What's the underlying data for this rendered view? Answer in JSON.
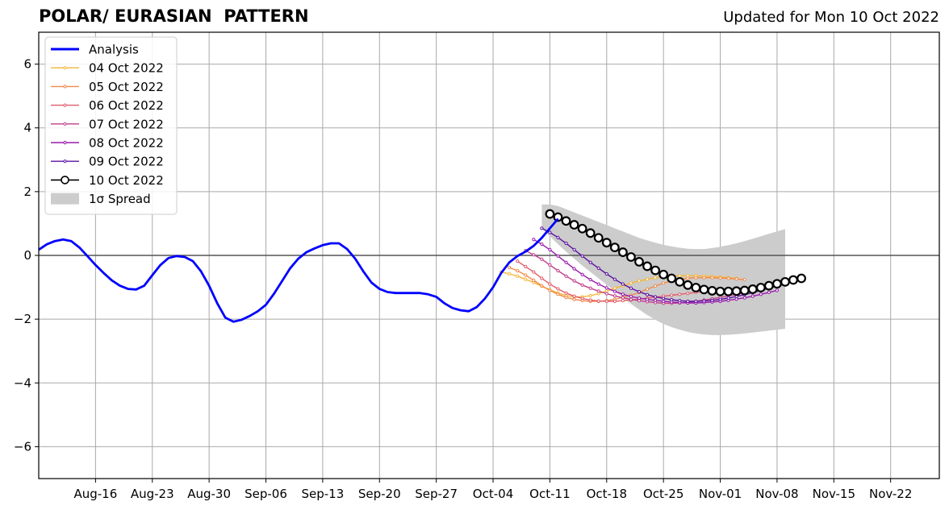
{
  "chart_data": {
    "type": "line",
    "title": "POLAR/ EURASIAN  PATTERN",
    "subtitle": "Updated for Mon 10 Oct 2022",
    "xlabel": "",
    "ylabel": "",
    "x_date_range": [
      "2022-08-09",
      "2022-11-28"
    ],
    "ylim": [
      -7,
      7
    ],
    "yticks": [
      -6,
      -4,
      -2,
      0,
      2,
      4,
      6
    ],
    "ytick_labels": [
      "−6",
      "−4",
      "−2",
      "0",
      "2",
      "4",
      "6"
    ],
    "xtick_dates": [
      "2022-08-16",
      "2022-08-23",
      "2022-08-30",
      "2022-09-06",
      "2022-09-13",
      "2022-09-20",
      "2022-09-27",
      "2022-10-04",
      "2022-10-11",
      "2022-10-18",
      "2022-10-25",
      "2022-11-01",
      "2022-11-08",
      "2022-11-15",
      "2022-11-22"
    ],
    "xtick_labels": [
      "Aug-16",
      "Aug-23",
      "Aug-30",
      "Sep-06",
      "Sep-13",
      "Sep-20",
      "Sep-27",
      "Oct-04",
      "Oct-11",
      "Oct-18",
      "Oct-25",
      "Nov-01",
      "Nov-08",
      "Nov-15",
      "Nov-22"
    ],
    "grid": true,
    "zero_line": true,
    "legend_position": "top-left",
    "analysis": {
      "name": "Analysis",
      "color": "#0000ff",
      "start": "2022-08-09",
      "values": [
        0.18,
        0.35,
        0.45,
        0.5,
        0.45,
        0.25,
        -0.02,
        -0.3,
        -0.55,
        -0.78,
        -0.95,
        -1.05,
        -1.07,
        -0.95,
        -0.62,
        -0.3,
        -0.08,
        -0.02,
        -0.05,
        -0.18,
        -0.5,
        -0.95,
        -1.5,
        -1.95,
        -2.08,
        -2.02,
        -1.9,
        -1.75,
        -1.55,
        -1.2,
        -0.8,
        -0.4,
        -0.1,
        0.1,
        0.22,
        0.32,
        0.38,
        0.38,
        0.2,
        -0.1,
        -0.5,
        -0.85,
        -1.05,
        -1.15,
        -1.18,
        -1.18,
        -1.18,
        -1.18,
        -1.22,
        -1.3,
        -1.5,
        -1.65,
        -1.72,
        -1.75,
        -1.62,
        -1.35,
        -1.0,
        -0.55,
        -0.22,
        -0.02,
        0.12,
        0.3,
        0.55,
        0.85,
        1.15
      ]
    },
    "spread": {
      "name": "1σ Spread",
      "color": "#cccccc",
      "start": "2022-10-10",
      "upper": [
        1.6,
        1.6,
        1.55,
        1.45,
        1.35,
        1.25,
        1.15,
        1.05,
        0.95,
        0.85,
        0.75,
        0.65,
        0.55,
        0.47,
        0.4,
        0.33,
        0.28,
        0.24,
        0.21,
        0.2,
        0.2,
        0.23,
        0.27,
        0.32,
        0.38,
        0.45,
        0.52,
        0.6,
        0.68,
        0.75,
        0.83
      ],
      "lower": [
        0.85,
        0.6,
        0.35,
        0.12,
        -0.1,
        -0.32,
        -0.52,
        -0.72,
        -0.92,
        -1.12,
        -1.32,
        -1.52,
        -1.7,
        -1.87,
        -2.02,
        -2.15,
        -2.25,
        -2.33,
        -2.4,
        -2.45,
        -2.48,
        -2.5,
        -2.5,
        -2.49,
        -2.47,
        -2.45,
        -2.42,
        -2.39,
        -2.36,
        -2.33,
        -2.3
      ]
    },
    "forecasts": [
      {
        "name": "04 Oct 2022",
        "color": "#f5b638",
        "start": "2022-10-05",
        "values": [
          -0.52,
          -0.58,
          -0.65,
          -0.75,
          -0.85,
          -0.97,
          -1.08,
          -1.18,
          -1.26,
          -1.3,
          -1.3,
          -1.26,
          -1.2,
          -1.12,
          -1.03,
          -0.95,
          -0.87,
          -0.8,
          -0.75,
          -0.7,
          -0.67,
          -0.65,
          -0.64,
          -0.64,
          -0.64,
          -0.65,
          -0.66,
          -0.68,
          -0.7,
          -0.72
        ]
      },
      {
        "name": "05 Oct 2022",
        "color": "#f08a4b",
        "start": "2022-10-06",
        "values": [
          -0.38,
          -0.48,
          -0.62,
          -0.78,
          -0.95,
          -1.1,
          -1.22,
          -1.32,
          -1.38,
          -1.42,
          -1.44,
          -1.44,
          -1.42,
          -1.38,
          -1.32,
          -1.25,
          -1.16,
          -1.06,
          -0.96,
          -0.87,
          -0.8,
          -0.75,
          -0.72,
          -0.7,
          -0.7,
          -0.7,
          -0.71,
          -0.72,
          -0.74,
          -0.76
        ]
      },
      {
        "name": "06 Oct 2022",
        "color": "#e05c6a",
        "start": "2022-10-07",
        "values": [
          -0.18,
          -0.35,
          -0.52,
          -0.72,
          -0.9,
          -1.05,
          -1.18,
          -1.28,
          -1.35,
          -1.4,
          -1.43,
          -1.44,
          -1.44,
          -1.42,
          -1.4,
          -1.37,
          -1.34,
          -1.31,
          -1.28,
          -1.25,
          -1.22,
          -1.19,
          -1.16,
          -1.13,
          -1.1,
          -1.08,
          -1.06,
          -1.04,
          -1.02,
          -1.0
        ]
      },
      {
        "name": "07 Oct 2022",
        "color": "#c13f8a",
        "start": "2022-10-08",
        "values": [
          0.15,
          0.02,
          -0.12,
          -0.3,
          -0.48,
          -0.65,
          -0.8,
          -0.93,
          -1.03,
          -1.12,
          -1.2,
          -1.27,
          -1.33,
          -1.38,
          -1.42,
          -1.45,
          -1.48,
          -1.5,
          -1.5,
          -1.49,
          -1.47,
          -1.44,
          -1.4,
          -1.36,
          -1.32,
          -1.27,
          -1.22,
          -1.17,
          -1.12,
          -1.07
        ]
      },
      {
        "name": "08 Oct 2022",
        "color": "#9a1aad",
        "start": "2022-10-09",
        "values": [
          0.5,
          0.35,
          0.18,
          -0.02,
          -0.22,
          -0.42,
          -0.6,
          -0.76,
          -0.9,
          -1.02,
          -1.13,
          -1.22,
          -1.29,
          -1.34,
          -1.38,
          -1.41,
          -1.44,
          -1.46,
          -1.48,
          -1.49,
          -1.49,
          -1.48,
          -1.46,
          -1.44,
          -1.41,
          -1.37,
          -1.33,
          -1.28,
          -1.22,
          -1.16,
          -1.1
        ]
      },
      {
        "name": "09 Oct 2022",
        "color": "#5b0fa0",
        "start": "2022-10-10",
        "values": [
          0.85,
          0.72,
          0.56,
          0.38,
          0.18,
          -0.02,
          -0.22,
          -0.4,
          -0.58,
          -0.75,
          -0.9,
          -1.03,
          -1.14,
          -1.23,
          -1.3,
          -1.35,
          -1.39,
          -1.42,
          -1.44,
          -1.44,
          -1.43,
          -1.41,
          -1.38,
          -1.34,
          -1.29,
          -1.23,
          -1.17,
          -1.1,
          -1.03,
          -0.96,
          -0.9
        ]
      },
      {
        "name": "10 Oct 2022",
        "color": "#000000",
        "start": "2022-10-11",
        "values": [
          1.3,
          1.2,
          1.08,
          0.96,
          0.84,
          0.7,
          0.55,
          0.4,
          0.25,
          0.1,
          -0.05,
          -0.2,
          -0.34,
          -0.47,
          -0.6,
          -0.72,
          -0.83,
          -0.93,
          -1.01,
          -1.07,
          -1.11,
          -1.13,
          -1.13,
          -1.12,
          -1.1,
          -1.06,
          -1.01,
          -0.95,
          -0.89,
          -0.83,
          -0.77,
          -0.72
        ]
      }
    ]
  }
}
